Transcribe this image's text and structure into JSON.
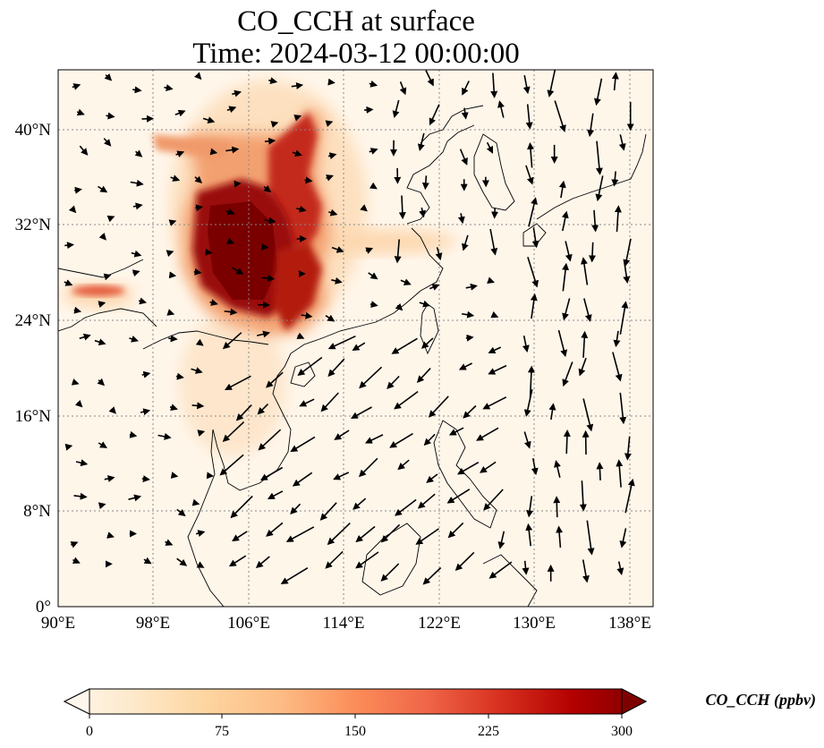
{
  "title": {
    "line1": "CO_CCH at surface",
    "line2": "Time: 2024-03-12 00:00:00"
  },
  "map": {
    "lon_range": [
      90,
      140
    ],
    "lat_range": [
      0,
      45
    ],
    "lon_ticks": [
      "90°E",
      "98°E",
      "106°E",
      "114°E",
      "122°E",
      "130°E",
      "138°E"
    ],
    "lat_ticks": [
      "0°",
      "8°N",
      "16°N",
      "24°N",
      "32°N",
      "40°N"
    ],
    "gridlines": true,
    "colormap": "OrRd",
    "wind_vectors": true
  },
  "colorbar": {
    "label": "CO_CCH (ppbv)",
    "range": [
      0,
      300
    ],
    "ticks": [
      "0",
      "75",
      "150",
      "225",
      "300"
    ],
    "extend": "both",
    "colors": [
      "#fff7ec",
      "#fee8c8",
      "#fdd49e",
      "#fdbb84",
      "#fc8d59",
      "#ef6548",
      "#d7301f",
      "#b30000",
      "#7f0000"
    ]
  }
}
